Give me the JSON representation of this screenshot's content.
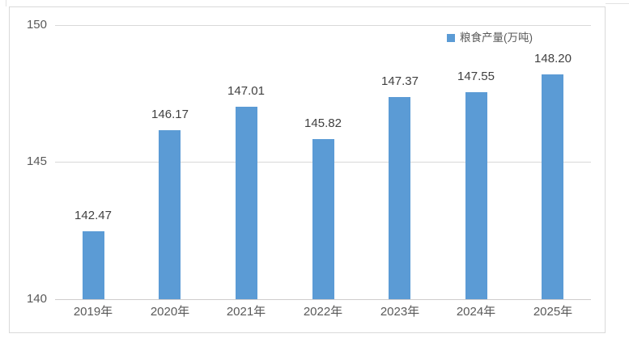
{
  "chart_data": {
    "type": "bar",
    "title": "",
    "categories": [
      "2019年",
      "2020年",
      "2021年",
      "2022年",
      "2023年",
      "2024年",
      "2025年"
    ],
    "series": [
      {
        "name": "粮食产量(万吨)",
        "values": [
          142.47,
          146.17,
          147.01,
          145.82,
          147.37,
          147.55,
          148.2
        ]
      }
    ],
    "data_labels": [
      "142.47",
      "146.17",
      "147.01",
      "145.82",
      "147.37",
      "147.55",
      "148.20"
    ],
    "xlabel": "",
    "ylabel": "",
    "ylim": [
      140,
      150
    ],
    "ytick_values": [
      140,
      145,
      150
    ],
    "yticks": [
      "140",
      "145",
      "150"
    ],
    "grid": true,
    "legend_position": "top-right",
    "bar_color": "#5b9bd5"
  },
  "legend": {
    "label": "粮食产量(万吨)",
    "marker_color": "#5b9bd5"
  },
  "colors": {
    "bar": "#5b9bd5",
    "grid_line": "#d9d9d9",
    "axis_line": "#cfcccc",
    "value_label": "#404040",
    "tick_label": "#595959",
    "chart_border": "#d9d9d9",
    "background": "#ffffff"
  }
}
